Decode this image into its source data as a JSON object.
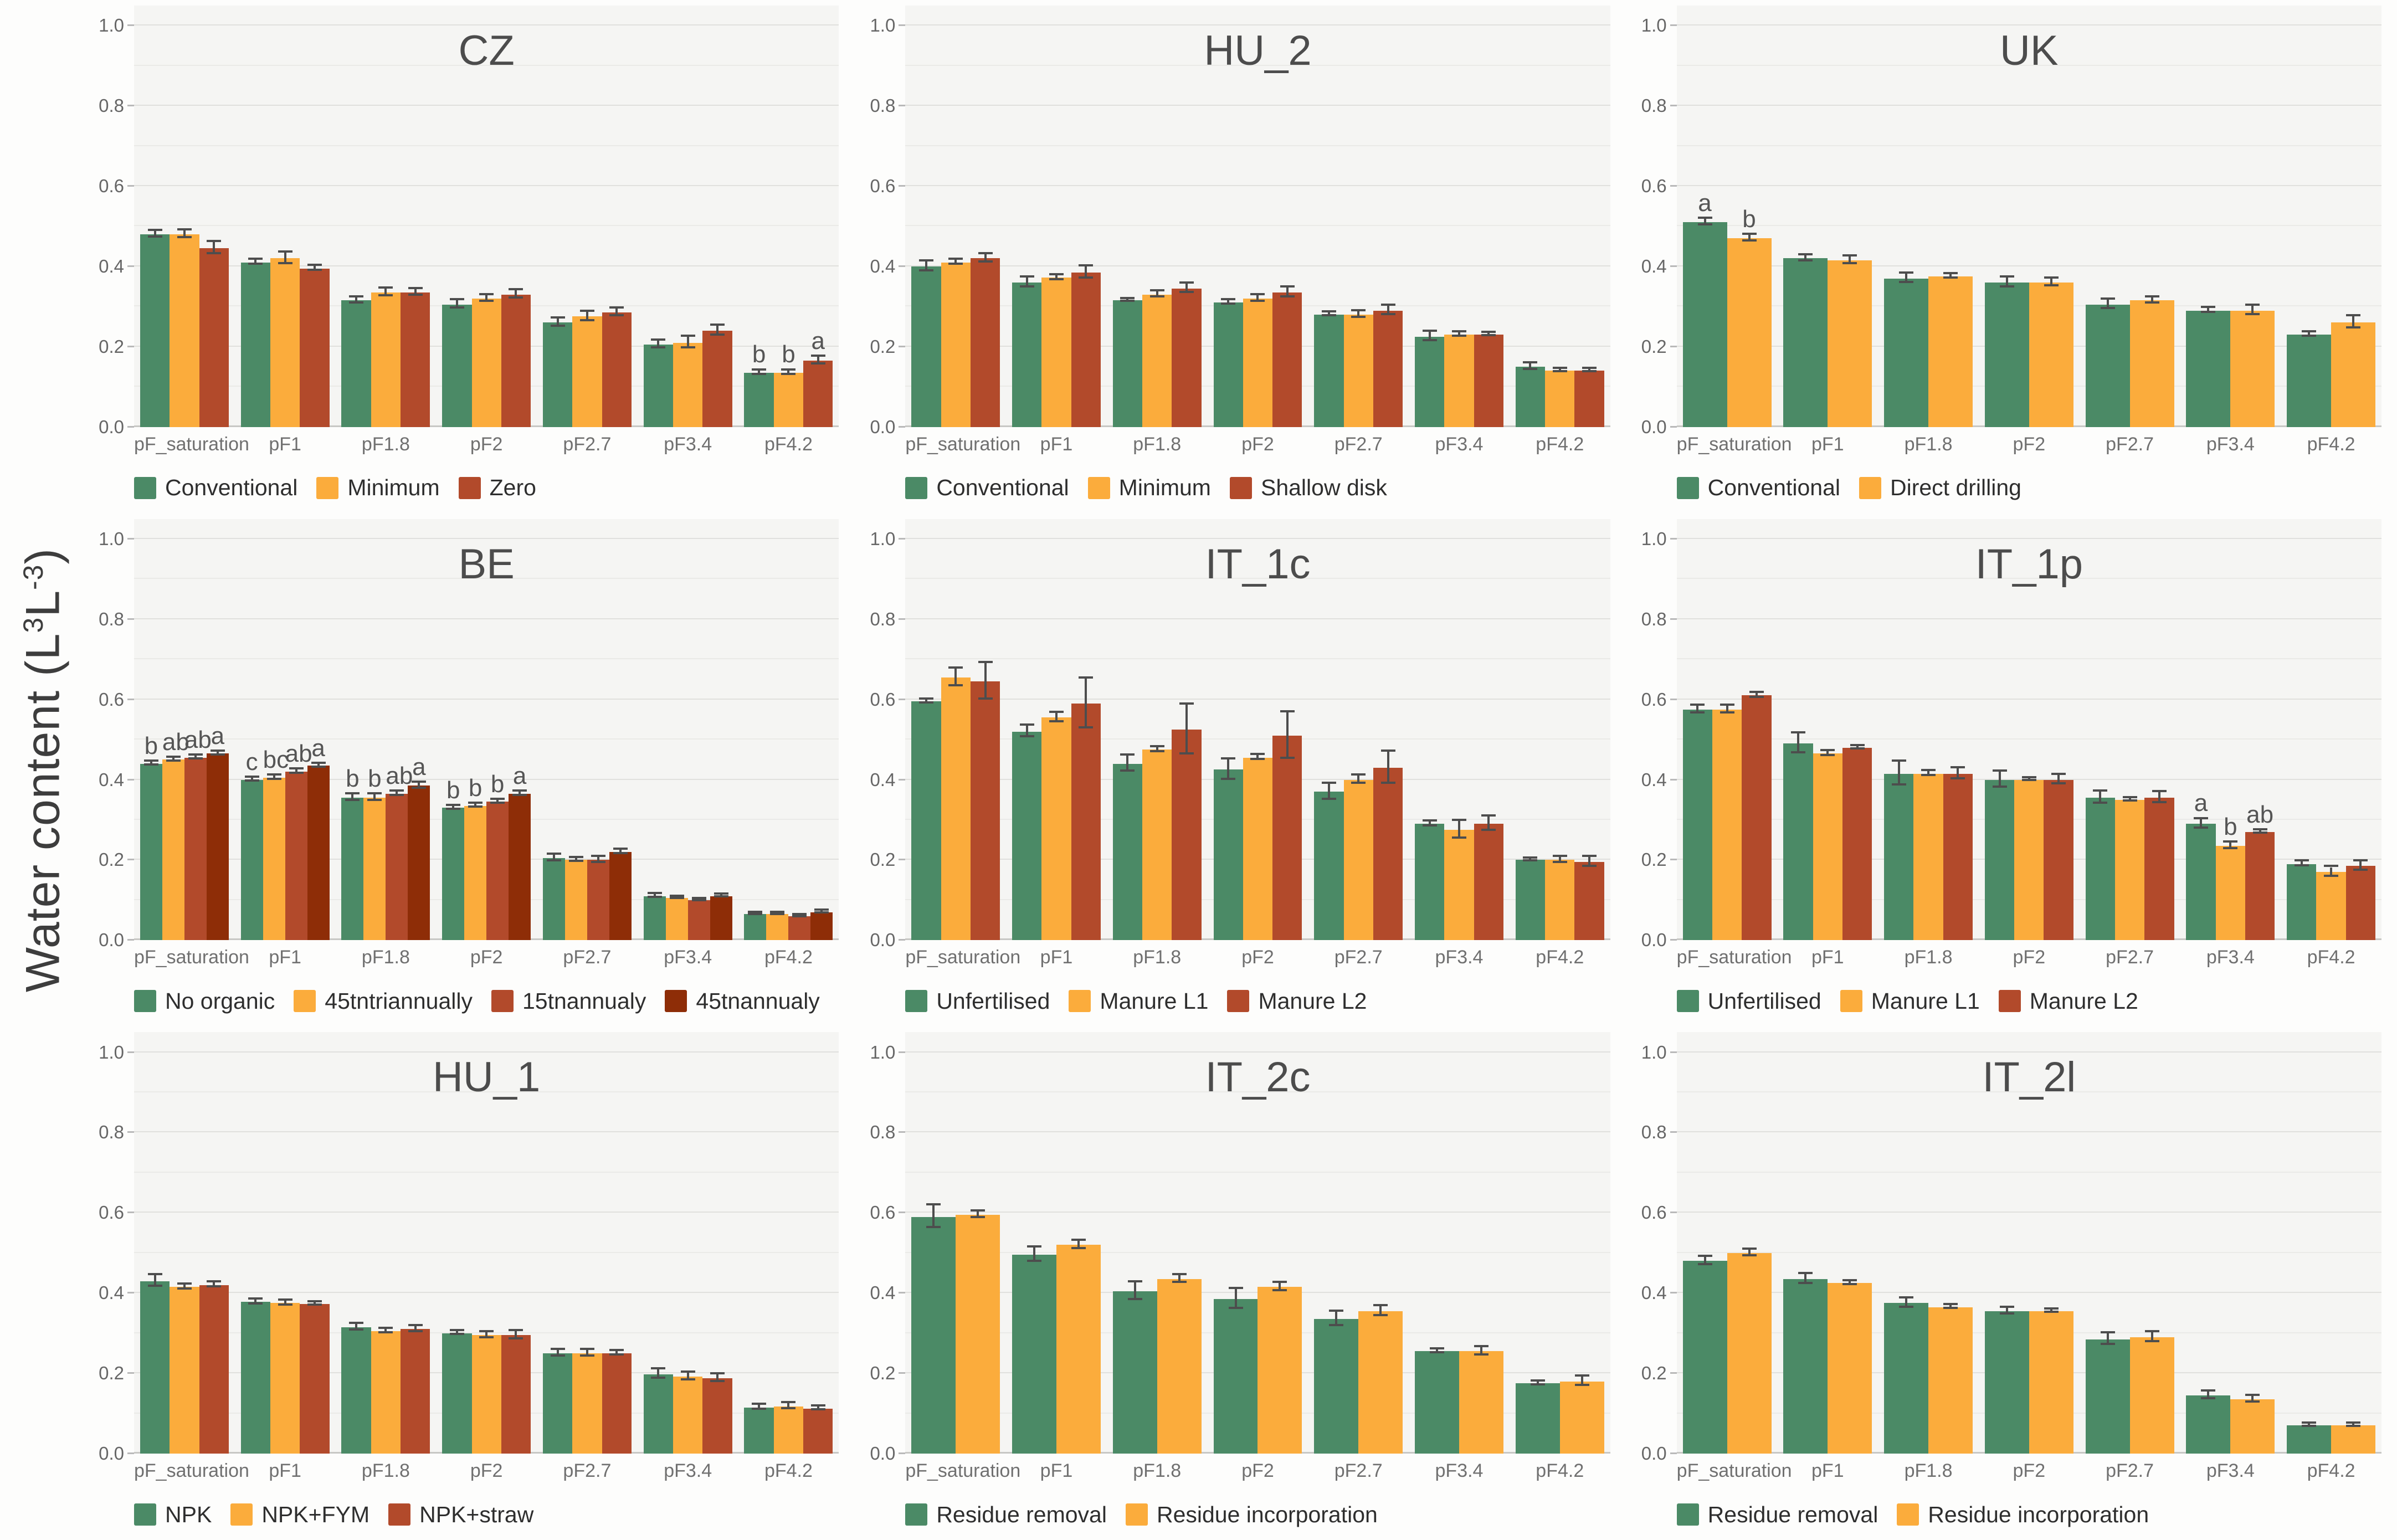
{
  "figure": {
    "y_axis_label": {
      "prefix": "Water content (L",
      "sup1": "3",
      "mid": "L",
      "sup2": "-3",
      "suffix": ")"
    },
    "y_ticks": [
      "1.0",
      "0.8",
      "0.6",
      "0.4",
      "0.2",
      "0.0"
    ],
    "series_colors": [
      "#4b8a66",
      "#fbac3c",
      "#b24a2b",
      "#8e2d07"
    ],
    "panel_bg": "#f5f5f3",
    "grid_on": true,
    "legend_position": "below-each-panel"
  },
  "chart_data": [
    {
      "type": "bar",
      "title": "CZ",
      "ylim": [
        0,
        1
      ],
      "categories": [
        "pF_saturation",
        "pF1",
        "pF1.8",
        "pF2",
        "pF2.7",
        "pF3.4",
        "pF4.2"
      ],
      "series": [
        {
          "name": "Conventional",
          "color": 0,
          "values": [
            0.48,
            0.41,
            0.315,
            0.305,
            0.26,
            0.205,
            0.135
          ],
          "errors": [
            0.008,
            0.006,
            0.008,
            0.01,
            0.01,
            0.01,
            0.006
          ],
          "letters": [
            "",
            "",
            "",
            "",
            "",
            "",
            "b"
          ]
        },
        {
          "name": "Minimum",
          "color": 1,
          "values": [
            0.48,
            0.42,
            0.335,
            0.32,
            0.275,
            0.21,
            0.135
          ],
          "errors": [
            0.01,
            0.015,
            0.01,
            0.008,
            0.012,
            0.015,
            0.006
          ],
          "letters": [
            "",
            "",
            "",
            "",
            "",
            "",
            "b"
          ]
        },
        {
          "name": "Zero",
          "color": 2,
          "values": [
            0.445,
            0.395,
            0.335,
            0.33,
            0.285,
            0.24,
            0.165
          ],
          "errors": [
            0.015,
            0.006,
            0.008,
            0.01,
            0.01,
            0.012,
            0.01
          ],
          "letters": [
            "",
            "",
            "",
            "",
            "",
            "",
            "a"
          ]
        }
      ]
    },
    {
      "type": "bar",
      "title": "HU_2",
      "ylim": [
        0,
        1
      ],
      "categories": [
        "pF_saturation",
        "pF1",
        "pF1.8",
        "pF2",
        "pF2.7",
        "pF3.4",
        "pF4.2"
      ],
      "series": [
        {
          "name": "Conventional",
          "color": 0,
          "values": [
            0.4,
            0.36,
            0.315,
            0.31,
            0.28,
            0.225,
            0.15
          ],
          "errors": [
            0.012,
            0.012,
            0.004,
            0.005,
            0.005,
            0.012,
            0.008
          ],
          "letters": [
            "",
            "",
            "",
            "",
            "",
            "",
            ""
          ]
        },
        {
          "name": "Minimum",
          "color": 1,
          "values": [
            0.41,
            0.372,
            0.33,
            0.32,
            0.28,
            0.23,
            0.14
          ],
          "errors": [
            0.006,
            0.006,
            0.008,
            0.008,
            0.008,
            0.006,
            0.004
          ],
          "letters": [
            "",
            "",
            "",
            "",
            "",
            "",
            ""
          ]
        },
        {
          "name": "Shallow disk",
          "color": 2,
          "values": [
            0.42,
            0.385,
            0.345,
            0.335,
            0.29,
            0.23,
            0.14
          ],
          "errors": [
            0.01,
            0.015,
            0.012,
            0.012,
            0.012,
            0.004,
            0.004
          ],
          "letters": [
            "",
            "",
            "",
            "",
            "",
            "",
            ""
          ]
        }
      ]
    },
    {
      "type": "bar",
      "title": "UK",
      "ylim": [
        0,
        1
      ],
      "categories": [
        "pF_saturation",
        "pF1",
        "pF1.8",
        "pF2",
        "pF2.7",
        "pF3.4",
        "pF4.2"
      ],
      "series": [
        {
          "name": "Conventional",
          "color": 0,
          "values": [
            0.51,
            0.42,
            0.37,
            0.36,
            0.305,
            0.29,
            0.23
          ],
          "errors": [
            0.008,
            0.008,
            0.012,
            0.012,
            0.012,
            0.006,
            0.006
          ],
          "letters": [
            "a",
            "",
            "",
            "",
            "",
            "",
            ""
          ]
        },
        {
          "name": "Direct drilling",
          "color": 1,
          "values": [
            0.47,
            0.415,
            0.375,
            0.36,
            0.315,
            0.29,
            0.26
          ],
          "errors": [
            0.008,
            0.01,
            0.006,
            0.01,
            0.008,
            0.012,
            0.015
          ],
          "letters": [
            "b",
            "",
            "",
            "",
            "",
            "",
            ""
          ]
        }
      ]
    },
    {
      "type": "bar",
      "title": "BE",
      "ylim": [
        0,
        1
      ],
      "categories": [
        "pF_saturation",
        "pF1",
        "pF1.8",
        "pF2",
        "pF2.7",
        "pF3.4",
        "pF4.2"
      ],
      "series": [
        {
          "name": "No organic",
          "color": 0,
          "values": [
            0.44,
            0.4,
            0.355,
            0.33,
            0.205,
            0.11,
            0.065
          ],
          "errors": [
            0.005,
            0.005,
            0.008,
            0.005,
            0.008,
            0.005,
            0.003
          ],
          "letters": [
            "b",
            "c",
            "b",
            "b",
            "",
            "",
            ""
          ]
        },
        {
          "name": "45tntriannually",
          "color": 1,
          "values": [
            0.45,
            0.405,
            0.355,
            0.335,
            0.2,
            0.105,
            0.065
          ],
          "errors": [
            0.005,
            0.005,
            0.008,
            0.005,
            0.005,
            0.003,
            0.003
          ],
          "letters": [
            "ab",
            "bc",
            "b",
            "b",
            "",
            "",
            ""
          ]
        },
        {
          "name": "15tnannualy",
          "color": 2,
          "values": [
            0.455,
            0.42,
            0.365,
            0.345,
            0.2,
            0.1,
            0.06
          ],
          "errors": [
            0.005,
            0.005,
            0.005,
            0.005,
            0.008,
            0.003,
            0.003
          ],
          "letters": [
            "ab",
            "ab",
            "ab",
            "b",
            "",
            "",
            ""
          ]
        },
        {
          "name": "45tnannualy",
          "color": 3,
          "values": [
            0.465,
            0.435,
            0.385,
            0.365,
            0.22,
            0.11,
            0.07
          ],
          "errors": [
            0.005,
            0.005,
            0.008,
            0.005,
            0.005,
            0.003,
            0.003
          ],
          "letters": [
            "a",
            "a",
            "a",
            "a",
            "",
            "",
            ""
          ]
        }
      ]
    },
    {
      "type": "bar",
      "title": "IT_1c",
      "ylim": [
        0,
        1
      ],
      "categories": [
        "pF_saturation",
        "pF1",
        "pF1.8",
        "pF2",
        "pF2.7",
        "pF3.4",
        "pF4.2"
      ],
      "series": [
        {
          "name": "Unfertilised",
          "color": 0,
          "values": [
            0.595,
            0.52,
            0.44,
            0.425,
            0.37,
            0.29,
            0.2
          ],
          "errors": [
            0.005,
            0.015,
            0.02,
            0.025,
            0.02,
            0.006,
            0.003
          ],
          "letters": [
            "",
            "",
            "",
            "",
            "",
            "",
            ""
          ]
        },
        {
          "name": "Manure L1",
          "color": 1,
          "values": [
            0.655,
            0.555,
            0.475,
            0.455,
            0.4,
            0.275,
            0.2
          ],
          "errors": [
            0.022,
            0.012,
            0.006,
            0.006,
            0.01,
            0.022,
            0.008
          ],
          "letters": [
            "",
            "",
            "",
            "",
            "",
            "",
            ""
          ]
        },
        {
          "name": "Manure L2",
          "color": 2,
          "values": [
            0.645,
            0.59,
            0.525,
            0.51,
            0.43,
            0.29,
            0.195
          ],
          "errors": [
            0.045,
            0.062,
            0.062,
            0.058,
            0.04,
            0.018,
            0.012
          ],
          "letters": [
            "",
            "",
            "",
            "",
            "",
            "",
            ""
          ]
        }
      ]
    },
    {
      "type": "bar",
      "title": "IT_1p",
      "ylim": [
        0,
        1
      ],
      "categories": [
        "pF_saturation",
        "pF1",
        "pF1.8",
        "pF2",
        "pF2.7",
        "pF3.4",
        "pF4.2"
      ],
      "series": [
        {
          "name": "Unfertilised",
          "color": 0,
          "values": [
            0.575,
            0.49,
            0.415,
            0.4,
            0.355,
            0.29,
            0.19
          ],
          "errors": [
            0.01,
            0.025,
            0.03,
            0.02,
            0.015,
            0.012,
            0.006
          ],
          "letters": [
            "",
            "",
            "",
            "",
            "",
            "a",
            ""
          ]
        },
        {
          "name": "Manure L1",
          "color": 1,
          "values": [
            0.575,
            0.465,
            0.415,
            0.4,
            0.35,
            0.235,
            0.17
          ],
          "errors": [
            0.01,
            0.006,
            0.006,
            0.004,
            0.004,
            0.008,
            0.012
          ],
          "letters": [
            "",
            "",
            "",
            "",
            "",
            "b",
            ""
          ]
        },
        {
          "name": "Manure L2",
          "color": 2,
          "values": [
            0.61,
            0.48,
            0.415,
            0.4,
            0.355,
            0.27,
            0.185
          ],
          "errors": [
            0.006,
            0.004,
            0.014,
            0.012,
            0.014,
            0.004,
            0.012
          ],
          "letters": [
            "",
            "",
            "",
            "",
            "",
            "ab",
            ""
          ]
        }
      ]
    },
    {
      "type": "bar",
      "title": "HU_1",
      "ylim": [
        0,
        1
      ],
      "categories": [
        "pF_saturation",
        "pF1",
        "pF1.8",
        "pF2",
        "pF2.7",
        "pF3.4",
        "pF4.2"
      ],
      "series": [
        {
          "name": "NPK",
          "color": 0,
          "values": [
            0.43,
            0.378,
            0.315,
            0.3,
            0.25,
            0.198,
            0.115
          ],
          "errors": [
            0.014,
            0.006,
            0.008,
            0.005,
            0.008,
            0.012,
            0.006
          ],
          "letters": [
            "",
            "",
            "",
            "",
            "",
            "",
            ""
          ]
        },
        {
          "name": "NPK+FYM",
          "color": 1,
          "values": [
            0.415,
            0.375,
            0.305,
            0.295,
            0.25,
            0.192,
            0.118
          ],
          "errors": [
            0.006,
            0.006,
            0.006,
            0.008,
            0.008,
            0.01,
            0.008
          ],
          "letters": [
            "",
            "",
            "",
            "",
            "",
            "",
            ""
          ]
        },
        {
          "name": "NPK+straw",
          "color": 2,
          "values": [
            0.42,
            0.373,
            0.31,
            0.295,
            0.25,
            0.188,
            0.112
          ],
          "errors": [
            0.006,
            0.004,
            0.008,
            0.01,
            0.005,
            0.01,
            0.005
          ],
          "letters": [
            "",
            "",
            "",
            "",
            "",
            "",
            ""
          ]
        }
      ]
    },
    {
      "type": "bar",
      "title": "IT_2c",
      "ylim": [
        0,
        1
      ],
      "categories": [
        "pF_saturation",
        "pF1",
        "pF1.8",
        "pF2",
        "pF2.7",
        "pF3.4",
        "pF4.2"
      ],
      "series": [
        {
          "name": "Residue removal",
          "color": 0,
          "values": [
            0.59,
            0.495,
            0.405,
            0.385,
            0.335,
            0.255,
            0.175
          ],
          "errors": [
            0.028,
            0.018,
            0.022,
            0.025,
            0.018,
            0.005,
            0.005
          ],
          "letters": [
            "",
            "",
            "",
            "",
            "",
            "",
            ""
          ]
        },
        {
          "name": "Residue incorporation",
          "color": 1,
          "values": [
            0.595,
            0.52,
            0.435,
            0.415,
            0.355,
            0.255,
            0.18
          ],
          "errors": [
            0.008,
            0.01,
            0.01,
            0.01,
            0.012,
            0.01,
            0.012
          ],
          "letters": [
            "",
            "",
            "",
            "",
            "",
            "",
            ""
          ]
        }
      ]
    },
    {
      "type": "bar",
      "title": "IT_2l",
      "ylim": [
        0,
        1
      ],
      "categories": [
        "pF_saturation",
        "pF1",
        "pF1.8",
        "pF2",
        "pF2.7",
        "pF3.4",
        "pF4.2"
      ],
      "series": [
        {
          "name": "Residue removal",
          "color": 0,
          "values": [
            0.48,
            0.435,
            0.375,
            0.355,
            0.285,
            0.145,
            0.07
          ],
          "errors": [
            0.01,
            0.012,
            0.012,
            0.008,
            0.015,
            0.01,
            0.004
          ],
          "letters": [
            "",
            "",
            "",
            "",
            "",
            "",
            ""
          ]
        },
        {
          "name": "Residue incorporation",
          "color": 1,
          "values": [
            0.5,
            0.425,
            0.365,
            0.355,
            0.29,
            0.135,
            0.07
          ],
          "errors": [
            0.008,
            0.005,
            0.005,
            0.004,
            0.012,
            0.008,
            0.004
          ],
          "letters": [
            "",
            "",
            "",
            "",
            "",
            "",
            ""
          ]
        }
      ]
    }
  ]
}
